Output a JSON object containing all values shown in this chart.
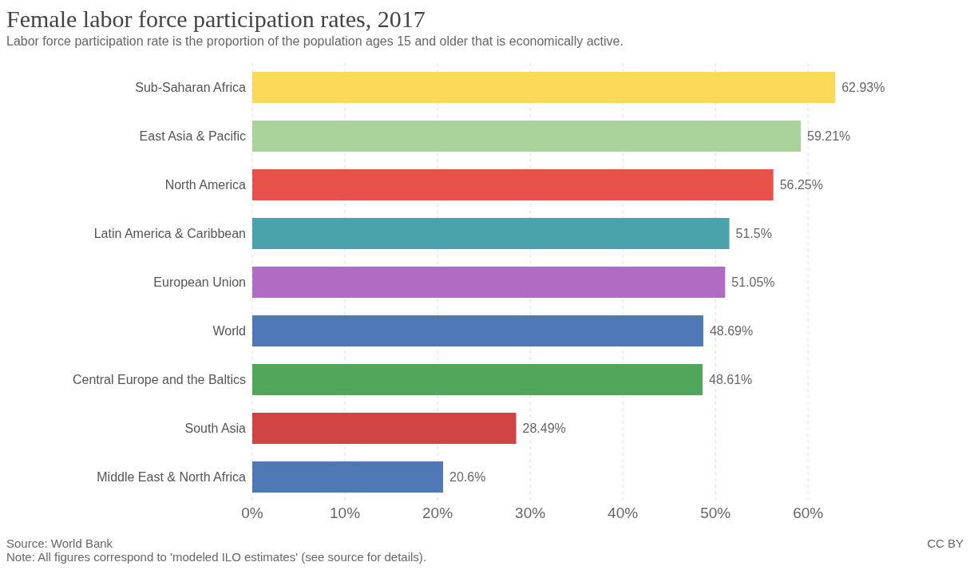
{
  "chart_data": {
    "type": "bar",
    "orientation": "horizontal",
    "title": "Female labor force participation rates, 2017",
    "subtitle": "Labor force participation rate is the proportion of the population ages 15 and older that is economically active.",
    "categories": [
      "Sub-Saharan Africa",
      "East Asia & Pacific",
      "North America",
      "Latin America & Caribbean",
      "European Union",
      "World",
      "Central Europe and the Baltics",
      "South Asia",
      "Middle East & North Africa"
    ],
    "values": [
      62.93,
      59.21,
      56.25,
      51.5,
      51.05,
      48.69,
      48.61,
      28.49,
      20.6
    ],
    "value_labels": [
      "62.93%",
      "59.21%",
      "56.25%",
      "51.5%",
      "51.05%",
      "48.69%",
      "48.61%",
      "28.49%",
      "20.6%"
    ],
    "colors": [
      "#fdd95a",
      "#a9d39a",
      "#e8504a",
      "#4aa3ab",
      "#b06bc3",
      "#4f79b6",
      "#52a65a",
      "#d04444",
      "#4f79b6"
    ],
    "xlim": [
      0,
      63
    ],
    "xticks": [
      {
        "value": 0,
        "label": "0%"
      },
      {
        "value": 10,
        "label": "10%"
      },
      {
        "value": 20,
        "label": "20%"
      },
      {
        "value": 30,
        "label": "30%"
      },
      {
        "value": 40,
        "label": "40%"
      },
      {
        "value": 50,
        "label": "50%"
      },
      {
        "value": 60,
        "label": "60%"
      }
    ],
    "grid": "x",
    "annotations": [
      "Source: World Bank",
      "Note: All figures correspond to 'modeled ILO estimates' (see source for details).",
      "CC BY"
    ]
  }
}
